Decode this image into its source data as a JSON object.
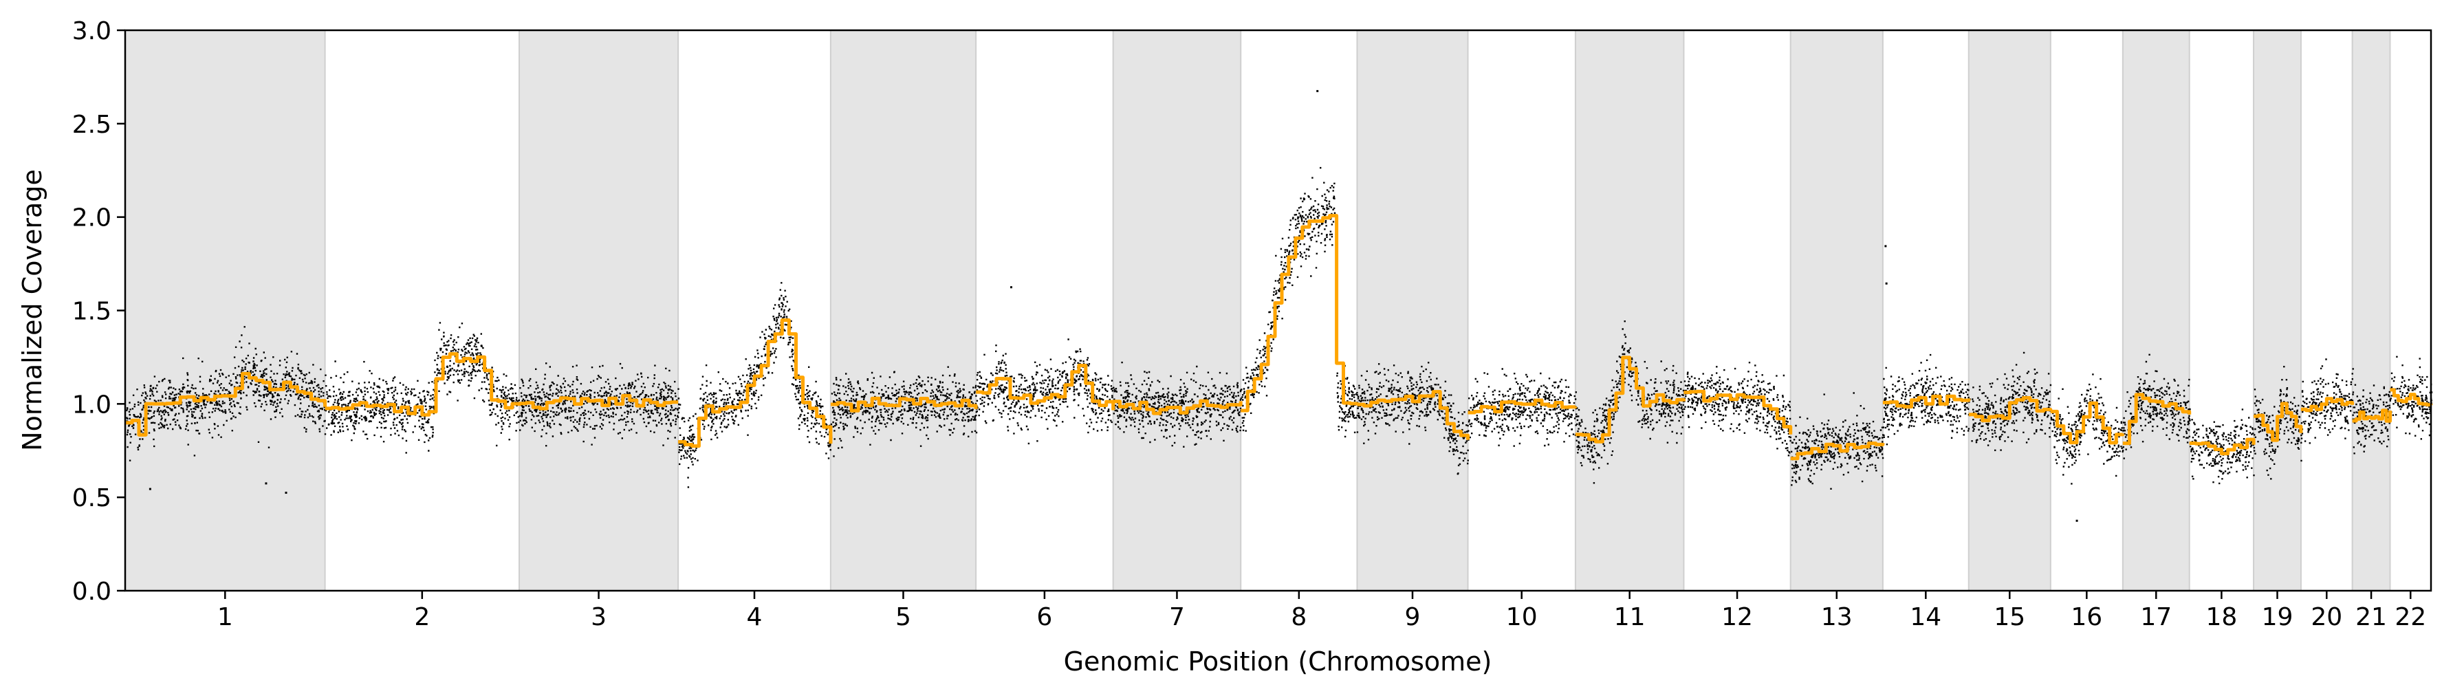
{
  "chart_data": {
    "type": "scatter",
    "title": "",
    "xlabel": "Genomic Position (Chromosome)",
    "ylabel": "Normalized Coverage",
    "ylim": [
      0,
      3
    ],
    "y_ticks": [
      "0.0",
      "0.5",
      "1.0",
      "1.5",
      "2.0",
      "2.5",
      "3.0"
    ],
    "grid": false,
    "legend": "none",
    "alternate_band_color": "#e5e5e5",
    "colors": {
      "points": "#000000",
      "segments": "#ffa500",
      "band": "#e5e5e5"
    },
    "chromosomes": [
      {
        "label": "1",
        "length": 249,
        "base": 1.02,
        "profile": [
          [
            0,
            0.9
          ],
          [
            0.05,
            0.92
          ],
          [
            0.07,
            0.85
          ],
          [
            0.1,
            1.0
          ],
          [
            0.48,
            1.03
          ],
          [
            0.52,
            1.03
          ],
          [
            0.6,
            1.18
          ],
          [
            0.75,
            1.05
          ],
          [
            0.8,
            1.12
          ],
          [
            0.9,
            1.05
          ],
          [
            1.0,
            1.0
          ]
        ]
      },
      {
        "label": "2",
        "length": 242,
        "base": 1.0,
        "profile": [
          [
            0,
            0.97
          ],
          [
            0.3,
            1.0
          ],
          [
            0.55,
            0.95
          ],
          [
            0.58,
            1.24
          ],
          [
            0.8,
            1.25
          ],
          [
            0.85,
            1.03
          ],
          [
            1.0,
            1.0
          ]
        ]
      },
      {
        "label": "3",
        "length": 198,
        "base": 1.02,
        "profile": [
          [
            0,
            1.0
          ],
          [
            0.6,
            1.02
          ],
          [
            1.0,
            1.0
          ]
        ]
      },
      {
        "label": "4",
        "length": 190,
        "base": 1.0,
        "profile": [
          [
            0,
            0.78
          ],
          [
            0.12,
            0.8
          ],
          [
            0.14,
            0.97
          ],
          [
            0.4,
            1.0
          ],
          [
            0.5,
            1.15
          ],
          [
            0.7,
            1.5
          ],
          [
            0.73,
            1.35
          ],
          [
            0.8,
            1.0
          ],
          [
            0.9,
            0.95
          ],
          [
            1.0,
            0.8
          ]
        ]
      },
      {
        "label": "5",
        "length": 181,
        "base": 1.01,
        "profile": [
          [
            0,
            0.98
          ],
          [
            0.5,
            1.01
          ],
          [
            0.9,
            1.0
          ],
          [
            1.0,
            0.98
          ]
        ]
      },
      {
        "label": "6",
        "length": 171,
        "base": 1.05,
        "profile": [
          [
            0,
            1.05
          ],
          [
            0.2,
            1.15
          ],
          [
            0.25,
            1.02
          ],
          [
            0.6,
            1.05
          ],
          [
            0.75,
            1.2
          ],
          [
            0.85,
            1.02
          ],
          [
            1.0,
            1.0
          ]
        ]
      },
      {
        "label": "7",
        "length": 159,
        "base": 1.0,
        "profile": [
          [
            0,
            1.0
          ],
          [
            0.5,
            0.98
          ],
          [
            1.0,
            1.0
          ]
        ]
      },
      {
        "label": "8",
        "length": 145,
        "base": 1.1,
        "profile": [
          [
            0,
            1.0
          ],
          [
            0.2,
            1.25
          ],
          [
            0.35,
            1.7
          ],
          [
            0.5,
            1.95
          ],
          [
            0.65,
            2.0
          ],
          [
            0.8,
            2.02
          ],
          [
            0.83,
            1.0
          ],
          [
            1.0,
            1.0
          ]
        ]
      },
      {
        "label": "9",
        "length": 138,
        "base": 1.02,
        "profile": [
          [
            0,
            1.0
          ],
          [
            0.7,
            1.05
          ],
          [
            0.85,
            0.85
          ],
          [
            1.0,
            0.8
          ]
        ]
      },
      {
        "label": "10",
        "length": 134,
        "base": 1.0,
        "profile": [
          [
            0,
            0.95
          ],
          [
            0.5,
            1.0
          ],
          [
            1.0,
            0.98
          ]
        ]
      },
      {
        "label": "11",
        "length": 135,
        "base": 1.05,
        "profile": [
          [
            0,
            0.85
          ],
          [
            0.15,
            0.78
          ],
          [
            0.25,
            0.85
          ],
          [
            0.35,
            1.0
          ],
          [
            0.45,
            1.28
          ],
          [
            0.6,
            1.0
          ],
          [
            1.0,
            1.02
          ]
        ]
      },
      {
        "label": "12",
        "length": 133,
        "base": 1.03,
        "profile": [
          [
            0,
            1.05
          ],
          [
            0.7,
            1.02
          ],
          [
            0.85,
            0.95
          ],
          [
            1.0,
            0.85
          ]
        ]
      },
      {
        "label": "13",
        "length": 115,
        "base": 0.78,
        "profile": [
          [
            0,
            0.72
          ],
          [
            0.3,
            0.77
          ],
          [
            0.7,
            0.78
          ],
          [
            1.0,
            0.8
          ]
        ]
      },
      {
        "label": "14",
        "length": 107,
        "base": 1.0,
        "profile": [
          [
            0,
            1.0
          ],
          [
            0.5,
            1.03
          ],
          [
            1.0,
            1.0
          ]
        ]
      },
      {
        "label": "15",
        "length": 102,
        "base": 0.98,
        "profile": [
          [
            0,
            0.95
          ],
          [
            0.4,
            0.92
          ],
          [
            0.6,
            1.05
          ],
          [
            0.8,
            1.0
          ],
          [
            1.0,
            0.95
          ]
        ]
      },
      {
        "label": "16",
        "length": 90,
        "base": 0.9,
        "profile": [
          [
            0,
            0.92
          ],
          [
            0.3,
            0.78
          ],
          [
            0.55,
            1.02
          ],
          [
            0.8,
            0.8
          ],
          [
            1.0,
            0.85
          ]
        ]
      },
      {
        "label": "17",
        "length": 83,
        "base": 1.0,
        "profile": [
          [
            0,
            0.8
          ],
          [
            0.2,
            1.02
          ],
          [
            0.6,
            1.0
          ],
          [
            1.0,
            0.95
          ]
        ]
      },
      {
        "label": "18",
        "length": 80,
        "base": 0.78,
        "profile": [
          [
            0,
            0.78
          ],
          [
            0.5,
            0.75
          ],
          [
            1.0,
            0.8
          ]
        ]
      },
      {
        "label": "19",
        "length": 59,
        "base": 0.9,
        "profile": [
          [
            0,
            0.95
          ],
          [
            0.4,
            0.8
          ],
          [
            0.6,
            1.0
          ],
          [
            1.0,
            0.85
          ]
        ]
      },
      {
        "label": "20",
        "length": 64,
        "base": 1.0,
        "profile": [
          [
            0,
            0.95
          ],
          [
            0.5,
            1.02
          ],
          [
            1.0,
            1.0
          ]
        ]
      },
      {
        "label": "21",
        "length": 47,
        "base": 0.95,
        "profile": [
          [
            0,
            0.92
          ],
          [
            1.0,
            0.95
          ]
        ]
      },
      {
        "label": "22",
        "length": 51,
        "base": 1.05,
        "profile": [
          [
            0,
            1.05
          ],
          [
            1.0,
            1.0
          ]
        ]
      }
    ],
    "outliers": [
      {
        "chromosome": "8",
        "pos": 0.65,
        "value": 2.68
      },
      {
        "chromosome": "14",
        "pos": 0.02,
        "value": 1.85
      },
      {
        "chromosome": "14",
        "pos": 0.03,
        "value": 1.65
      },
      {
        "chromosome": "6",
        "pos": 0.25,
        "value": 1.63
      },
      {
        "chromosome": "1",
        "pos": 0.7,
        "value": 0.58
      },
      {
        "chromosome": "1",
        "pos": 0.8,
        "value": 0.53
      },
      {
        "chromosome": "1",
        "pos": 0.12,
        "value": 0.55
      },
      {
        "chromosome": "16",
        "pos": 0.35,
        "value": 0.38
      }
    ]
  }
}
